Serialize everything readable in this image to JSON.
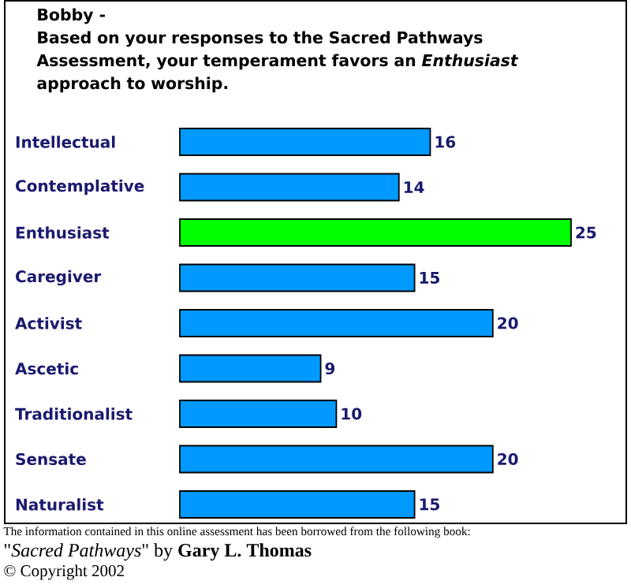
{
  "chart_data": {
    "type": "bar",
    "orientation": "horizontal",
    "title": "Bobby -",
    "subtitle": "Based on your responses to the Sacred Pathways Assessment, your temperament favors an *Enthusiast* approach to worship.",
    "categories": [
      "Intellectual",
      "Contemplative",
      "Enthusiast",
      "Caregiver",
      "Activist",
      "Ascetic",
      "Traditionalist",
      "Sensate",
      "Naturalist"
    ],
    "values": [
      16,
      14,
      25,
      15,
      20,
      9,
      10,
      20,
      15
    ],
    "colors": [
      "#0099ff",
      "#0099ff",
      "#00ff00",
      "#0099ff",
      "#0099ff",
      "#0099ff",
      "#0099ff",
      "#0099ff",
      "#0099ff"
    ],
    "data_labels": true,
    "annotations": [
      "The information contained in this online assessment has been borrowed from the following book:",
      "\"*Sacred Pathways*\" by **Gary L. Thomas**",
      "© Copyright 2002"
    ]
  }
}
